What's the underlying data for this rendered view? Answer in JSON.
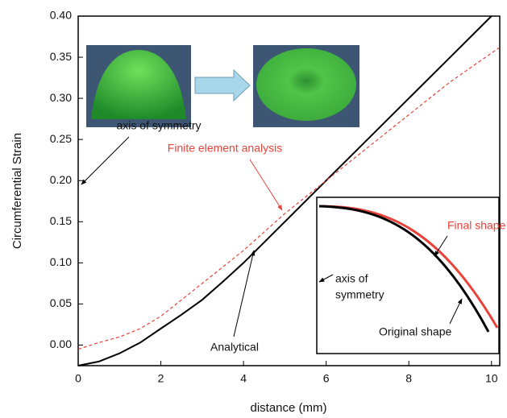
{
  "chart_data": {
    "type": "line",
    "x_label": "distance (mm)",
    "y_label": "Circumferential Strain",
    "xlim": [
      0,
      10.2
    ],
    "ylim": [
      -0.025,
      0.4
    ],
    "xticks": [
      0,
      2,
      4,
      6,
      8,
      10
    ],
    "yticks": [
      {
        "value": 0,
        "label": "0.00"
      },
      0.05,
      {
        "value": 0.1,
        "label": "0.10"
      },
      0.15,
      {
        "value": 0.2,
        "label": "0.20"
      },
      0.25,
      {
        "value": 0.3,
        "label": "0.30"
      },
      0.35,
      {
        "value": 0.4,
        "label": "0.40"
      }
    ],
    "series": [
      {
        "name": "Analytical",
        "color": "#000000",
        "dashed": false,
        "x": [
          0,
          0.5,
          1,
          1.5,
          2,
          2.5,
          3,
          3.5,
          4,
          5,
          6,
          7,
          8,
          9,
          10
        ],
        "values": [
          -0.025,
          -0.02,
          -0.01,
          0.003,
          0.02,
          0.037,
          0.055,
          0.077,
          0.1,
          0.15,
          0.2,
          0.25,
          0.3,
          0.35,
          0.4
        ]
      },
      {
        "name": "Finite element analysis",
        "color": "#e8433a",
        "dashed": true,
        "x": [
          0,
          0.5,
          1,
          1.5,
          2,
          3,
          4,
          5,
          6,
          7,
          8,
          9,
          10.2
        ],
        "values": [
          -0.005,
          0.003,
          0.01,
          0.02,
          0.035,
          0.075,
          0.115,
          0.16,
          0.2,
          0.24,
          0.28,
          0.32,
          0.362
        ]
      }
    ],
    "annotations": [
      "axis of symmetry"
    ],
    "inset": {
      "final": "Final shape",
      "axis": [
        "axis of",
        "symmetry"
      ],
      "original": "Original shape"
    }
  }
}
